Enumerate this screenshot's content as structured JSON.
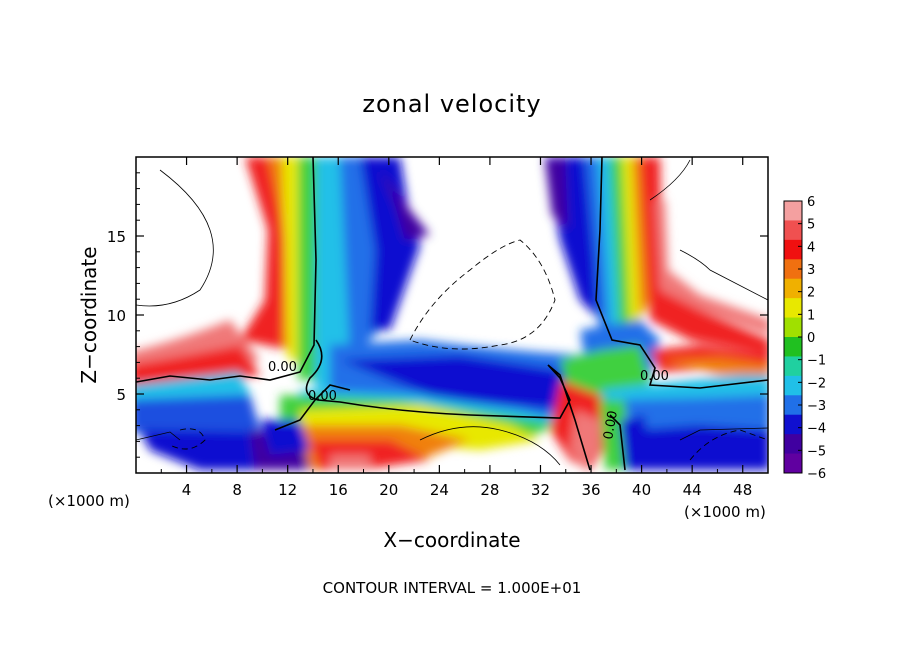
{
  "chart_data": {
    "type": "heatmap",
    "title": "zonal velocity",
    "xlabel": "X−coordinate",
    "ylabel": "Z−coordinate",
    "x_unit_label_left": "(×1000 m)",
    "x_unit_label_right": "(×1000 m)",
    "xlim": [
      0,
      50
    ],
    "ylim": [
      0,
      20
    ],
    "x_ticks": [
      4,
      8,
      12,
      16,
      20,
      24,
      28,
      32,
      36,
      40,
      44,
      48
    ],
    "y_ticks": [
      5,
      10,
      15
    ],
    "y_tick_labels": [
      "5",
      "10",
      "15"
    ],
    "x_tick_labels": [
      "4",
      "8",
      "12",
      "16",
      "20",
      "24",
      "28",
      "32",
      "36",
      "40",
      "44",
      "48"
    ],
    "colorbar": {
      "levels": [
        6,
        5,
        4,
        3,
        2,
        1,
        0,
        -1,
        -2,
        -3,
        -4,
        -5,
        -6
      ],
      "labels": [
        "6",
        "5",
        "4",
        "3",
        "2",
        "1",
        "0",
        "−1",
        "−2",
        "−3",
        "−4",
        "−5",
        "−6"
      ],
      "colors": [
        "#f4a0a0",
        "#f05050",
        "#f01010",
        "#f07010",
        "#f0b000",
        "#e8e800",
        "#a0e000",
        "#20c020",
        "#20d0a0",
        "#20c0e8",
        "#2070e8",
        "#1010d0",
        "#4000a0",
        "#6000a0"
      ]
    },
    "contour_labels": [
      "0.00",
      "0.00",
      "0.00",
      "0.00"
    ],
    "footer": "CONTOUR INTERVAL = 1.000E+01"
  }
}
